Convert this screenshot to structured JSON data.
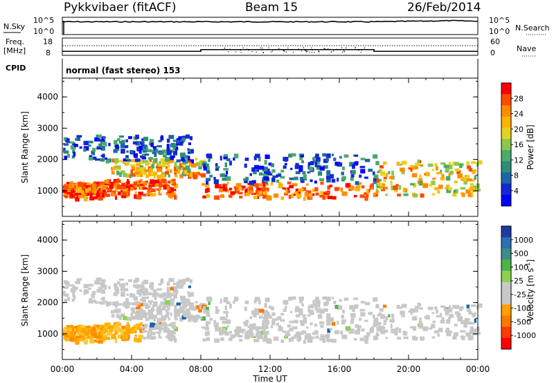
{
  "header": {
    "station": "Pykkvibaer (fitACF)",
    "beam": "Beam 15",
    "date": "26/Feb/2014"
  },
  "top_panels": {
    "nsky_label": "N.Sky",
    "nsearch_label": "N.Search",
    "freq_label_line1": "Freq.",
    "freq_label_line2": "[MHz]",
    "nave_label": "Nave",
    "cpid_label": "CPID",
    "cpid_text": "normal (fast stereo) 153",
    "noise_ticks_left": [
      "10^5",
      "10^0"
    ],
    "noise_ticks_right": [
      "10^5",
      "10^0"
    ],
    "freq_ticks": [
      "18",
      "8"
    ],
    "nave_ticks": [
      "60",
      "0"
    ]
  },
  "colorbars": {
    "power": {
      "label": "Power [dB]",
      "ticks": [
        "28",
        "24",
        "20",
        "16",
        "12",
        "8",
        "4"
      ],
      "colors": [
        "#ff0000",
        "#ff4b00",
        "#ff8c00",
        "#ffb400",
        "#e6d21e",
        "#8cc850",
        "#4baa6e",
        "#2d8c78",
        "#1e64aa",
        "#1428d2",
        "#0000ff"
      ]
    },
    "velocity": {
      "label_main": "Velocity",
      "label_unit": "[m s",
      "label_sup": "-1",
      "label_close": "]",
      "ticks": [
        "1000",
        "500",
        "100",
        "25",
        "-25",
        "-100",
        "-500",
        "-1000"
      ],
      "colors": [
        "#1e3ca0",
        "#2d6eb4",
        "#3c8c8c",
        "#4bb446",
        "#8cd250",
        "#c8c8c8",
        "#c8c8c8",
        "#ffa000",
        "#ff7800",
        "#ff3c00",
        "#ff0000"
      ]
    }
  },
  "chart_data": {
    "type": "heatmap",
    "x_ticks": [
      "00:00",
      "04:00",
      "08:00",
      "12:00",
      "16:00",
      "20:00",
      "00:00"
    ],
    "xlabel": "Time UT",
    "xlim_hours": [
      0,
      24
    ],
    "panels": [
      {
        "name": "power",
        "ylabel": "Slant Range [km]",
        "ylim": [
          180,
          4600
        ],
        "yticks": [
          "4000",
          "3000",
          "2000",
          "1000"
        ],
        "ytick_values": [
          4000,
          3000,
          2000,
          1000
        ],
        "colorbar_range_db": [
          0,
          30
        ],
        "bands": [
          {
            "t": [
              0,
              2.2
            ],
            "r": [
              800,
              1300
            ],
            "class": "strong"
          },
          {
            "t": [
              2.2,
              6.5
            ],
            "r": [
              850,
              1400
            ],
            "class": "strong"
          },
          {
            "t": [
              2.8,
              8
            ],
            "r": [
              1500,
              2050
            ],
            "class": "medium"
          },
          {
            "t": [
              0,
              7.5
            ],
            "r": [
              2000,
              2800
            ],
            "class": "weak"
          },
          {
            "t": [
              8,
              18
            ],
            "r": [
              800,
              1300
            ],
            "class": "strong"
          },
          {
            "t": [
              8,
              18
            ],
            "r": [
              1300,
              2200
            ],
            "class": "weak"
          },
          {
            "t": [
              18,
              24
            ],
            "r": [
              900,
              2000
            ],
            "class": "medium"
          }
        ]
      },
      {
        "name": "velocity",
        "ylabel": "Slant Range [km]",
        "ylim": [
          180,
          4600
        ],
        "yticks": [
          "4000",
          "3000",
          "2000",
          "1000"
        ],
        "ytick_values": [
          4000,
          3000,
          2000,
          1000
        ],
        "colorbar_range_ms": [
          -1000,
          1000
        ],
        "dominant": "low velocity (|v| < 25 m/s)"
      }
    ],
    "frequency_mhz": {
      "t": [
        0,
        8,
        18,
        24
      ],
      "values": [
        10.3,
        11.3,
        10.3,
        10.3
      ]
    },
    "nave": {
      "value": 60
    }
  }
}
